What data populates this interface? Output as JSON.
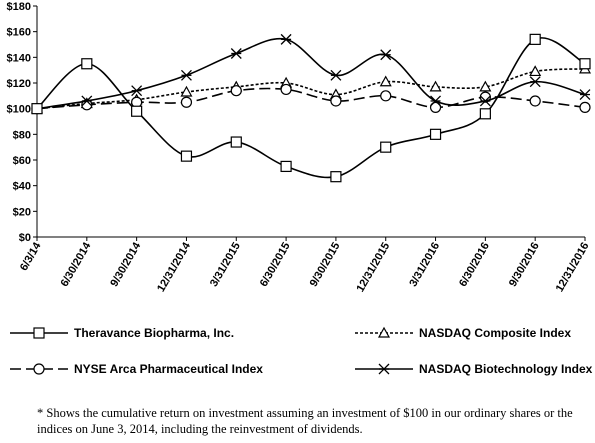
{
  "chart_data": {
    "type": "line",
    "categories": [
      "6/3/14",
      "6/30/2014",
      "9/30/2014",
      "12/31/2014",
      "3/31/2015",
      "6/30/2015",
      "9/30/2015",
      "12/31/2015",
      "3/31/2016",
      "6/30/2016",
      "9/30/2016",
      "12/31/2016"
    ],
    "ylim": [
      0,
      180
    ],
    "yticks": [
      0,
      20,
      40,
      60,
      80,
      100,
      120,
      140,
      160,
      180
    ],
    "ytick_labels": [
      "$0",
      "$20",
      "$40",
      "$60",
      "$80",
      "$100",
      "$120",
      "$140",
      "$160",
      "$180"
    ],
    "grid": false,
    "legend_position": "bottom",
    "series": [
      {
        "name": "Theravance Biopharma, Inc.",
        "marker": "square",
        "dash": "solid",
        "values": [
          100,
          135,
          98,
          63,
          74,
          55,
          47,
          70,
          80,
          96,
          154,
          135
        ]
      },
      {
        "name": "NASDAQ Composite Index",
        "marker": "triangle",
        "dash": "dotted",
        "values": [
          100,
          104,
          107,
          113,
          117,
          120,
          111,
          121,
          117,
          117,
          129,
          131
        ]
      },
      {
        "name": "NYSE Arca Pharmaceutical Index",
        "marker": "circle",
        "dash": "dashed",
        "values": [
          100,
          103,
          105,
          105,
          114,
          115,
          106,
          110,
          101,
          109,
          106,
          101
        ]
      },
      {
        "name": "NASDAQ Biotechnology Index",
        "marker": "star",
        "dash": "solid",
        "values": [
          100,
          106,
          114,
          126,
          143,
          154,
          126,
          142,
          106,
          106,
          121,
          111
        ]
      }
    ]
  },
  "footnote": "* Shows the cumulative return on investment assuming an investment of $100 in our ordinary shares or the indices on June 3, 2014, including the reinvestment of dividends.",
  "colors": {
    "line": "#000000",
    "marker_fill": "#ffffff",
    "background": "#ffffff"
  }
}
